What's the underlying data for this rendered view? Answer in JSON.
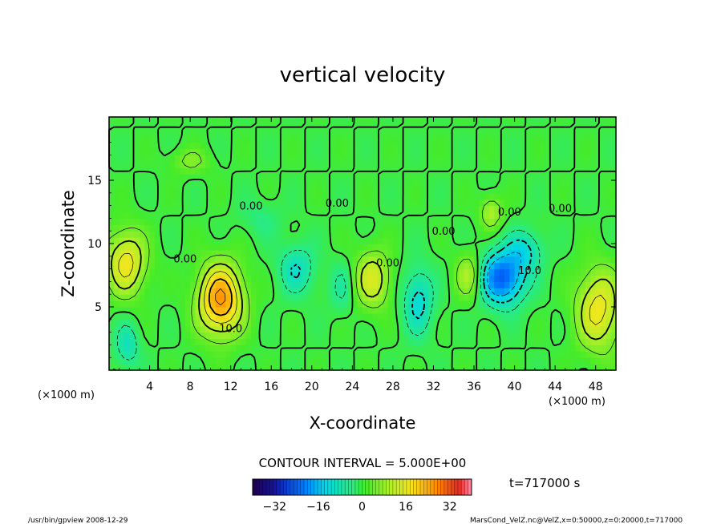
{
  "chart_data": {
    "type": "heatmap",
    "title": "vertical velocity",
    "xlabel": "X-coordinate",
    "ylabel": "Z-coordinate",
    "x_unit_left": "(×1000 m)",
    "x_unit_right": "(×1000 m)",
    "xlim": [
      0,
      50
    ],
    "ylim": [
      0,
      20
    ],
    "x_ticks": [
      "4",
      "8",
      "12",
      "16",
      "20",
      "24",
      "28",
      "32",
      "36",
      "40",
      "44",
      "48"
    ],
    "x_tick_values": [
      4,
      8,
      12,
      16,
      20,
      24,
      28,
      32,
      36,
      40,
      44,
      48
    ],
    "y_ticks": [
      "5",
      "10",
      "15"
    ],
    "y_tick_values": [
      5,
      10,
      15
    ],
    "contour_interval": "CONTOUR INTERVAL = 5.000E+00",
    "contour_labels": [
      {
        "text": "0.00",
        "x": 7.5,
        "y": 8.5
      },
      {
        "text": "10.0",
        "x": 12.0,
        "y": 3.0
      },
      {
        "text": "0.00",
        "x": 14.0,
        "y": 12.7
      },
      {
        "text": "0.00",
        "x": 22.5,
        "y": 12.9
      },
      {
        "text": "0.00",
        "x": 27.5,
        "y": 8.2
      },
      {
        "text": "0.00",
        "x": 33.0,
        "y": 10.7
      },
      {
        "text": "0.00",
        "x": 39.5,
        "y": 12.2
      },
      {
        "text": "10.0",
        "x": 41.5,
        "y": 7.6
      },
      {
        "text": "0.00",
        "x": 44.5,
        "y": 12.5
      }
    ],
    "colorbar": {
      "ticks": [
        "−32",
        "−16",
        "0",
        "16",
        "32"
      ],
      "tick_values": [
        -32,
        -16,
        0,
        16,
        32
      ],
      "range": [
        -40,
        40
      ]
    },
    "features": [
      {
        "x": 1.7,
        "y": 8.5,
        "amp": 17,
        "sx": 2.0,
        "sy": 2.6
      },
      {
        "x": 11.0,
        "y": 5.6,
        "amp": 26,
        "sx": 2.2,
        "sy": 2.8
      },
      {
        "x": 26.0,
        "y": 7.2,
        "amp": 14,
        "sx": 1.8,
        "sy": 2.3
      },
      {
        "x": 35.5,
        "y": 7.5,
        "amp": 11,
        "sx": 1.3,
        "sy": 1.8
      },
      {
        "x": 37.7,
        "y": 12.5,
        "amp": 10,
        "sx": 1.1,
        "sy": 1.3
      },
      {
        "x": 48.3,
        "y": 4.8,
        "amp": 17,
        "sx": 2.2,
        "sy": 3.2
      },
      {
        "x": 8.0,
        "y": 16.5,
        "amp": 6,
        "sx": 2.0,
        "sy": 1.0
      },
      {
        "x": 1.8,
        "y": 2.0,
        "amp": -9,
        "sx": 1.2,
        "sy": 1.8
      },
      {
        "x": 18.5,
        "y": 8.0,
        "amp": -10,
        "sx": 1.8,
        "sy": 2.0
      },
      {
        "x": 23.0,
        "y": 6.5,
        "amp": -6,
        "sx": 1.2,
        "sy": 2.0
      },
      {
        "x": 30.5,
        "y": 5.5,
        "amp": -12,
        "sx": 1.5,
        "sy": 2.6
      },
      {
        "x": 38.8,
        "y": 7.3,
        "amp": -24,
        "sx": 2.2,
        "sy": 2.1
      },
      {
        "x": 41.0,
        "y": 9.5,
        "amp": -10,
        "sx": 1.8,
        "sy": 1.6
      },
      {
        "x": 15.0,
        "y": 12.0,
        "amp": -4,
        "sx": 2.0,
        "sy": 1.5
      }
    ]
  },
  "time_label": "t=717000 s",
  "footer_left": "/usr/bin/gpview   2008-12-29",
  "footer_right": "MarsCond_VelZ.nc@VelZ,x=0:50000,z=0:20000,t=717000"
}
